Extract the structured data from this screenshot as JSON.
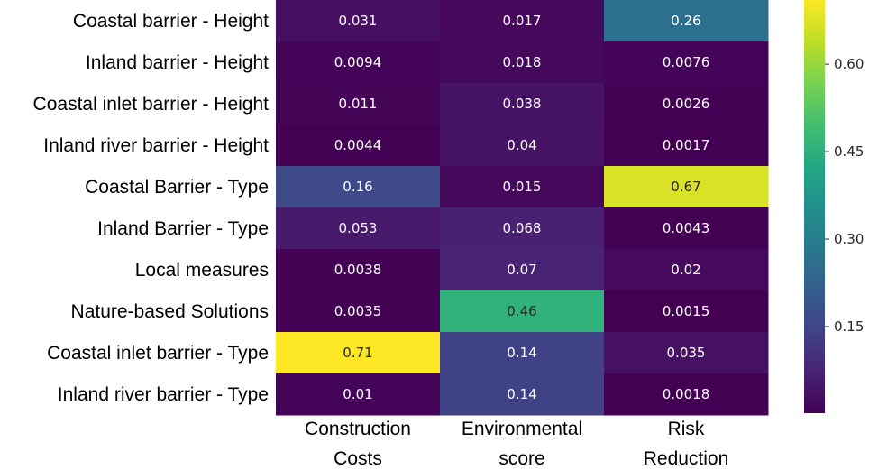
{
  "chart_data": {
    "type": "heatmap",
    "rows": [
      "Coastal barrier - Height",
      "Inland barrier - Height",
      "Coastal inlet barrier - Height",
      "Inland river barrier - Height",
      "Coastal Barrier - Type",
      "Inland Barrier - Type",
      "Local measures",
      "Nature-based Solutions",
      "Coastal inlet barrier - Type",
      "Inland river barrier - Type"
    ],
    "columns": [
      [
        "Construction",
        "Costs"
      ],
      [
        "Environmental",
        "score"
      ],
      [
        "Risk",
        "Reduction"
      ]
    ],
    "values": [
      [
        0.031,
        0.017,
        0.26
      ],
      [
        0.0094,
        0.018,
        0.0076
      ],
      [
        0.011,
        0.038,
        0.0026
      ],
      [
        0.0044,
        0.04,
        0.0017
      ],
      [
        0.16,
        0.015,
        0.67
      ],
      [
        0.053,
        0.068,
        0.0043
      ],
      [
        0.0038,
        0.07,
        0.02
      ],
      [
        0.0035,
        0.46,
        0.0015
      ],
      [
        0.71,
        0.14,
        0.035
      ],
      [
        0.01,
        0.14,
        0.0018
      ]
    ],
    "value_labels": [
      [
        "0.031",
        "0.017",
        "0.26"
      ],
      [
        "0.0094",
        "0.018",
        "0.0076"
      ],
      [
        "0.011",
        "0.038",
        "0.0026"
      ],
      [
        "0.0044",
        "0.04",
        "0.0017"
      ],
      [
        "0.16",
        "0.015",
        "0.67"
      ],
      [
        "0.053",
        "0.068",
        "0.0043"
      ],
      [
        "0.0038",
        "0.07",
        "0.02"
      ],
      [
        "0.0035",
        "0.46",
        "0.0015"
      ],
      [
        "0.71",
        "0.14",
        "0.035"
      ],
      [
        "0.01",
        "0.14",
        "0.0018"
      ]
    ],
    "colormap": "viridis",
    "vmin": 0.0015,
    "vmax": 0.71,
    "colorbar_ticks": [
      0.15,
      0.3,
      0.45,
      0.6
    ],
    "colorbar_tick_labels": [
      "0.15",
      "0.30",
      "0.45",
      "0.60"
    ],
    "annotations_on": true,
    "colorbar": "right"
  }
}
